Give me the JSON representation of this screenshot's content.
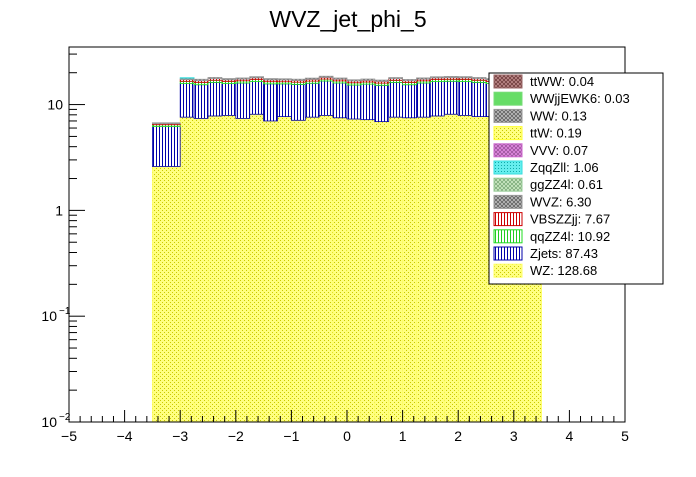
{
  "chart_data": {
    "type": "bar",
    "stacked": true,
    "title": "WVZ_jet_phi_5",
    "xlabel": "",
    "ylabel": "",
    "xlim": [
      -5,
      5
    ],
    "ylim": [
      0.01,
      35
    ],
    "yscale": "log",
    "xticks": [
      "−5",
      "−4",
      "−3",
      "−2",
      "−1",
      "0",
      "1",
      "2",
      "3",
      "4",
      "5"
    ],
    "ytick_labels": {
      "major_1": "10",
      "major_2": "1"
    },
    "bin_edges": [
      -3.5,
      -3.0,
      -2.75,
      -2.5,
      -2.25,
      -2.0,
      -1.75,
      -1.5,
      -1.25,
      -1.0,
      -0.75,
      -0.5,
      -0.25,
      0.0,
      0.25,
      0.5,
      0.75,
      1.0,
      1.25,
      1.5,
      1.75,
      2.0,
      2.25,
      2.5,
      2.75,
      3.0,
      3.25,
      3.5
    ],
    "legend_position": "top-right",
    "series": [
      {
        "name": "WZ",
        "legend": "WZ: 128.68",
        "color": "#ffff66",
        "pattern": "yellow-dots",
        "values": [
          2.6,
          7.6,
          7.4,
          7.8,
          7.9,
          7.4,
          8.1,
          7.0,
          7.7,
          7.1,
          7.6,
          7.9,
          7.5,
          7.3,
          7.2,
          6.9,
          7.6,
          7.5,
          7.6,
          7.8,
          8.1,
          7.9,
          7.7,
          7.7,
          7.4,
          7.8,
          7.6
        ]
      },
      {
        "name": "Zjets",
        "legend": "Zjets: 87.43",
        "color": "#0000aa",
        "pattern": "blue-vertical",
        "values": [
          3.6,
          8.2,
          8.0,
          8.4,
          7.9,
          8.6,
          8.4,
          8.7,
          8.0,
          8.4,
          8.3,
          8.8,
          8.5,
          8.0,
          8.4,
          8.3,
          8.6,
          7.9,
          8.4,
          8.7,
          8.5,
          8.6,
          8.5,
          8.1,
          8.7,
          8.1,
          8.3
        ]
      },
      {
        "name": "qqZZ4l",
        "legend": "qqZZ4l: 10.92",
        "color": "#22dd22",
        "pattern": "green-vertical",
        "values": [
          0.25,
          0.78,
          0.76,
          0.76,
          0.72,
          0.77,
          0.74,
          0.75,
          0.73,
          0.78,
          0.76,
          0.72,
          0.74,
          0.76,
          0.74,
          0.75,
          0.73,
          0.77,
          0.75,
          0.74,
          0.73,
          0.77,
          0.76,
          0.74,
          0.74,
          0.76,
          0.75
        ]
      },
      {
        "name": "VBSZZjj",
        "legend": "VBSZZjj: 7.67",
        "color": "#cc0000",
        "pattern": "red-vertical",
        "values": [
          0.14,
          0.62,
          0.64,
          0.62,
          0.6,
          0.6,
          0.63,
          0.62,
          0.61,
          0.6,
          0.62,
          0.61,
          0.6,
          0.62,
          0.58,
          0.6,
          0.62,
          0.6,
          0.61,
          0.6,
          0.62,
          0.6,
          0.58,
          0.6,
          0.61,
          0.6,
          0.6
        ]
      },
      {
        "name": "WVZ",
        "legend": "WVZ: 6.30",
        "color": "#999999",
        "pattern": "grey-cross",
        "values": [
          0.14,
          0.5,
          0.55,
          0.46,
          0.5,
          0.48,
          0.49,
          0.54,
          0.49,
          0.5,
          0.51,
          0.5,
          0.49,
          0.48,
          0.52,
          0.5,
          0.46,
          0.5,
          0.52,
          0.48,
          0.49,
          0.51,
          0.49,
          0.46,
          0.51,
          0.49,
          0.5
        ]
      },
      {
        "name": "ggZZ4l",
        "legend": "ggZZ4l: 0.61",
        "color": "#99cc99",
        "pattern": "light-green-cross",
        "values": [
          0.02,
          0.06,
          0.06,
          0.05,
          0.05,
          0.05,
          0.05,
          0.04,
          0.05,
          0.05,
          0.05,
          0.05,
          0.05,
          0.05,
          0.05,
          0.05,
          0.05,
          0.05,
          0.05,
          0.05,
          0.05,
          0.05,
          0.05,
          0.05,
          0.05,
          0.05,
          0.05
        ]
      },
      {
        "name": "ZqqZll",
        "legend": "ZqqZll: 1.06",
        "color": "#33dddd",
        "pattern": "cyan-dots",
        "values": [
          0.01,
          0.19,
          0.11,
          0.08,
          0.1,
          0.06,
          0.12,
          0.09,
          0.11,
          0.06,
          0.08,
          0.09,
          0.07,
          0.1,
          0.09,
          0.08,
          0.07,
          0.09,
          0.06,
          0.05,
          0.08,
          0.08,
          0.05,
          0.07,
          0.05,
          0.04,
          0.04
        ]
      },
      {
        "name": "VVV",
        "legend": "VVV: 0.07",
        "color": "#cc66cc",
        "pattern": "violet-cross",
        "values": [
          0.0,
          0.016,
          0.0,
          0.009,
          0.0,
          0.0,
          0.004,
          0.0,
          0.0,
          0.0,
          0.0,
          0.0,
          0.0,
          0.0,
          0.006,
          0.0,
          0.0,
          0.008,
          0.0,
          0.006,
          0.0,
          0.0,
          0.0,
          0.0,
          0.0,
          0.0,
          0.0
        ]
      },
      {
        "name": "ttW",
        "legend": "ttW: 0.19",
        "color": "#ffff33",
        "pattern": "yellow-dots",
        "values": [
          0.0,
          0.03,
          0.0,
          0.014,
          0.0,
          0.0,
          0.035,
          0.025,
          0.028,
          0.024,
          0.0,
          0.0,
          0.0,
          0.0,
          0.01,
          0.0,
          0.0,
          0.012,
          0.0,
          0.024,
          0.0,
          0.0,
          0.0,
          0.0,
          0.0,
          0.0,
          0.0
        ]
      },
      {
        "name": "WW",
        "legend": "WW: 0.13",
        "color": "#999999",
        "pattern": "grey-cross",
        "values": [
          0.012,
          0.015,
          0.011,
          0.013,
          0.011,
          0.012,
          0.012,
          0.0,
          0.0,
          0.0,
          0.011,
          0.0,
          0.0,
          0.0,
          0.0,
          0.0,
          0.011,
          0.0,
          0.0,
          0.0,
          0.012,
          0.0,
          0.0,
          0.0,
          0.0,
          0.0,
          0.0
        ]
      },
      {
        "name": "WWjjEWK6",
        "legend": "WWjjEWK6: 0.03",
        "color": "#77dd77",
        "pattern": "green-solid",
        "values": [
          0,
          0,
          0,
          0,
          0,
          0,
          0,
          0,
          0,
          0,
          0,
          0,
          0,
          0,
          0,
          0,
          0.015,
          0.015,
          0,
          0,
          0,
          0,
          0,
          0,
          0,
          0,
          0
        ]
      },
      {
        "name": "ttWW",
        "legend": "ttWW: 0.04",
        "color": "#996666",
        "pattern": "brown-cross",
        "values": [
          0,
          0,
          0,
          0,
          0,
          0,
          0,
          0,
          0,
          0,
          0,
          0,
          0,
          0,
          0,
          0,
          0,
          0,
          0,
          0,
          0,
          0,
          0,
          0,
          0,
          0,
          0
        ]
      }
    ]
  }
}
